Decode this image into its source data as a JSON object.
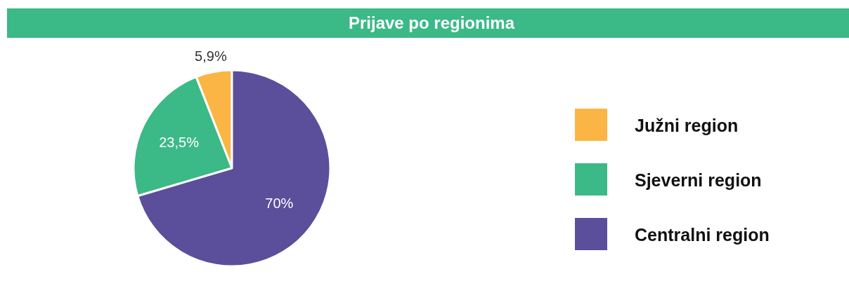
{
  "chart_data": {
    "type": "pie",
    "title": "Prijave po regionima",
    "categories": [
      "Južni region",
      "Sjeverni region",
      "Centralni region"
    ],
    "values": [
      5.9,
      23.5,
      70
    ],
    "value_labels": [
      "5,9%",
      "23,5%",
      "70%"
    ],
    "colors": [
      "#fbb544",
      "#3bb987",
      "#5b4e9a"
    ],
    "legend": "right"
  }
}
